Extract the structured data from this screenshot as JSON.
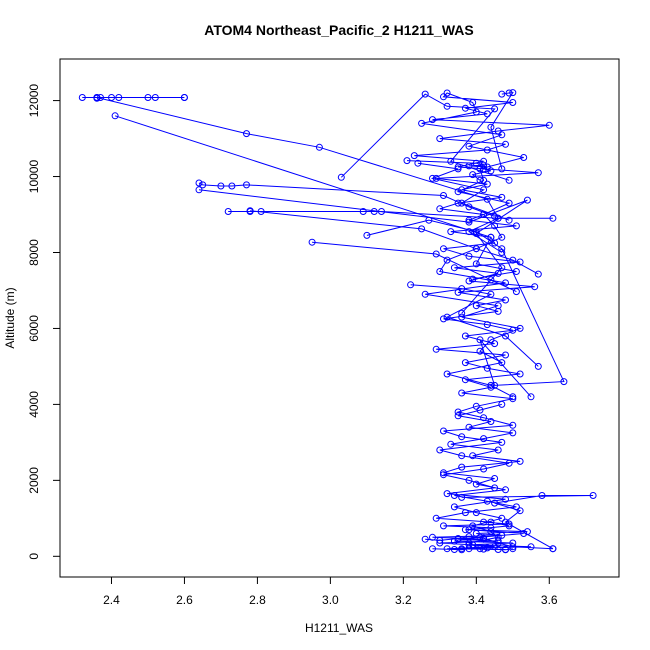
{
  "chart_data": {
    "type": "line",
    "title": "ATOM4 Northeast_Pacific_2 H1211_WAS",
    "xlabel": "H1211_WAS",
    "ylabel": "Altitude (m)",
    "xlim": [
      2.3,
      3.75
    ],
    "ylim": [
      -150,
      12700
    ],
    "xticks": [
      "2.4",
      "2.6",
      "2.8",
      "3.0",
      "3.2",
      "3.4",
      "3.6"
    ],
    "yticks": [
      "0",
      "2000",
      "4000",
      "6000",
      "8000",
      "10000",
      "12000"
    ],
    "grid": false,
    "legend": "none",
    "marker": "open-circle",
    "series": [
      {
        "color": "#0000ff",
        "x": [
          3.41,
          3.38,
          3.46,
          3.44,
          3.39,
          3.47,
          3.4,
          3.34,
          3.48,
          3.32,
          3.45,
          3.38,
          3.31,
          3.42,
          3.49,
          3.36,
          3.3,
          3.47,
          3.36,
          3.31,
          3.5,
          3.42,
          3.35,
          3.4,
          3.5,
          3.36,
          3.44,
          3.37,
          3.52,
          3.43,
          3.37,
          3.48,
          3.29,
          3.45,
          3.37,
          3.5,
          3.43,
          3.31,
          3.46,
          3.4,
          3.48,
          3.35,
          3.56,
          3.38,
          3.46,
          3.34,
          3.52,
          3.38,
          3.31,
          3.45,
          3.44,
          3.33,
          3.51,
          3.38,
          3.42,
          3.3,
          3.35,
          3.47,
          3.36,
          3.43,
          3.29,
          3.57,
          3.35,
          3.42,
          3.23,
          3.43,
          3.48,
          3.3,
          3.46,
          3.6,
          3.28,
          3.43,
          3.37,
          3.5,
          3.31,
          3.32,
          3.39,
          3.4,
          3.25,
          3.47,
          3.38,
          3.53,
          3.41,
          3.42,
          3.35,
          3.49,
          3.42,
          3.45,
          3.47,
          3.4,
          3.32,
          3.3,
          3.48,
          3.26,
          3.46,
          3.36,
          3.52,
          3.44,
          3.41,
          3.47,
          3.32,
          3.44,
          3.5
        ],
        "y": [
          200,
          350,
          500,
          650,
          800,
          1000,
          1150,
          1300,
          1500,
          1650,
          1800,
          2000,
          2150,
          2300,
          2450,
          2650,
          2800,
          3000,
          3150,
          3300,
          3450,
          3650,
          3800,
          3950,
          4150,
          4300,
          4450,
          4650,
          4800,
          4950,
          5100,
          5300,
          5450,
          5600,
          5800,
          5950,
          6100,
          6250,
          6450,
          6600,
          6750,
          6950,
          7100,
          7250,
          7450,
          7600,
          7750,
          7900,
          8100,
          8250,
          8400,
          8550,
          8700,
          8850,
          9000,
          9150,
          9300,
          9450,
          9650,
          9800,
          9950,
          10100,
          10250,
          10400,
          10550,
          10700,
          10850,
          11000,
          11200,
          11350,
          11500,
          11650,
          11800,
          11950,
          12100,
          12200,
          11950,
          11700,
          11400,
          11100,
          10800,
          10500,
          10200,
          9900,
          9600,
          9300,
          9000,
          8700,
          8400,
          8100,
          7800,
          7500,
          7200,
          6900,
          6600,
          6300,
          6000,
          5700,
          5400,
          5100,
          4800,
          4500,
          4200
        ]
      },
      {
        "color": "#0000ff",
        "x": [
          3.47,
          3.41,
          3.35,
          3.44,
          3.38,
          3.5,
          3.42,
          3.33,
          3.46,
          3.39,
          3.52,
          3.36,
          3.31,
          3.45,
          3.4,
          3.48,
          3.34,
          3.43,
          3.51,
          3.37,
          3.29,
          3.44,
          3.49,
          3.38,
          3.53,
          3.41,
          3.35,
          3.46,
          3.3,
          3.39,
          3.55,
          3.43,
          3.36,
          3.48,
          3.32,
          3.45,
          3.38,
          3.5,
          3.34,
          3.42,
          3.28,
          3.47,
          3.4,
          3.54,
          3.37,
          3.44,
          3.31,
          3.49,
          3.42
        ],
        "y": [
          4000,
          3850,
          3700,
          3550,
          3400,
          3250,
          3100,
          2950,
          2800,
          2650,
          2500,
          2350,
          2200,
          2050,
          1900,
          1750,
          1600,
          1450,
          1300,
          1150,
          1000,
          900,
          800,
          700,
          600,
          500,
          450,
          400,
          350,
          300,
          250,
          220,
          200,
          180,
          200,
          250,
          300,
          350,
          400,
          450,
          500,
          550,
          600,
          650,
          700,
          750,
          800,
          850,
          900
        ]
      },
      {
        "color": "#0000ff",
        "x": [
          2.32,
          2.36,
          2.4,
          2.42,
          2.5,
          2.52,
          2.6,
          2.6,
          2.37,
          2.36
        ],
        "y": [
          12080,
          12080,
          12080,
          12080,
          12080,
          12080,
          12080,
          12080,
          12080,
          12060
        ]
      },
      {
        "color": "#0000ff",
        "x": [
          2.36,
          2.77,
          2.97,
          3.43,
          3.46,
          3.38,
          3.47
        ],
        "y": [
          12080,
          11130,
          10770,
          9400,
          8900,
          8550,
          8000
        ]
      },
      {
        "color": "#0000ff",
        "x": [
          2.41,
          3.44,
          3.4,
          3.51,
          3.39
        ],
        "y": [
          11600,
          8400,
          7700,
          7500,
          7300
        ]
      },
      {
        "color": "#0000ff",
        "x": [
          3.03,
          3.26,
          3.32,
          3.45,
          3.33,
          3.49
        ],
        "y": [
          9980,
          12170,
          11850,
          11780,
          10400,
          9900
        ]
      },
      {
        "color": "#0000ff",
        "x": [
          3.47,
          3.49,
          3.5,
          3.44,
          3.47
        ],
        "y": [
          12170,
          12200,
          12210,
          11300,
          10200
        ]
      },
      {
        "color": "#0000ff",
        "x": [
          2.64,
          2.65,
          2.7,
          2.73,
          2.77,
          3.31,
          3.38,
          3.45
        ],
        "y": [
          9830,
          9780,
          9750,
          9750,
          9780,
          9500,
          9200,
          8950
        ]
      },
      {
        "color": "#0000ff",
        "x": [
          2.64,
          3.38,
          3.54,
          3.4,
          3.47,
          3.36
        ],
        "y": [
          9650,
          8800,
          9380,
          8500,
          7600,
          6400
        ]
      },
      {
        "color": "#0000ff",
        "x": [
          2.72,
          2.78,
          2.81,
          3.09,
          3.12,
          3.14,
          3.46,
          3.61
        ],
        "y": [
          9080,
          9080,
          9080,
          9080,
          9080,
          9080,
          8900,
          8900
        ]
      },
      {
        "color": "#0000ff",
        "x": [
          2.78,
          3.25,
          3.4,
          3.5,
          3.57
        ],
        "y": [
          9100,
          8620,
          8100,
          7800,
          7430
        ]
      },
      {
        "color": "#0000ff",
        "x": [
          2.95,
          3.29,
          3.44,
          3.51
        ],
        "y": [
          8270,
          7960,
          7280,
          6970
        ]
      },
      {
        "color": "#0000ff",
        "x": [
          3.1,
          3.27,
          3.4,
          3.47,
          3.64,
          3.45,
          3.41,
          3.55
        ],
        "y": [
          8450,
          8850,
          8550,
          8100,
          4600,
          4500,
          5700,
          4200
        ]
      },
      {
        "color": "#0000ff",
        "x": [
          3.21,
          3.4,
          3.42,
          3.38,
          3.43,
          3.42,
          3.44,
          3.39,
          3.41
        ],
        "y": [
          10420,
          10350,
          10300,
          10280,
          10250,
          10200,
          10150,
          10050,
          9900
        ]
      },
      {
        "color": "#0000ff",
        "x": [
          3.24,
          3.35,
          3.28,
          3.42,
          3.36,
          3.49
        ],
        "y": [
          10350,
          10200,
          9950,
          9650,
          9300,
          8850
        ]
      },
      {
        "color": "#0000ff",
        "x": [
          3.22,
          3.36,
          3.44,
          3.32,
          3.48,
          3.57
        ],
        "y": [
          7150,
          7050,
          6900,
          6300,
          5800,
          5000
        ]
      },
      {
        "color": "#0000ff",
        "x": [
          3.36,
          3.72,
          3.58,
          3.45,
          3.52,
          3.48,
          3.61
        ],
        "y": [
          1550,
          1600,
          1600,
          1400,
          1200,
          900,
          200
        ]
      },
      {
        "color": "#0000ff",
        "x": [
          3.26,
          3.3,
          3.35,
          3.38,
          3.42,
          3.46,
          3.5,
          3.61
        ],
        "y": [
          450,
          420,
          470,
          520,
          480,
          350,
          250,
          200
        ]
      },
      {
        "color": "#0000ff",
        "x": [
          3.28,
          3.34,
          3.36,
          3.38,
          3.42,
          3.46,
          3.48,
          3.5
        ],
        "y": [
          200,
          180,
          170,
          200,
          190,
          180,
          170,
          200
        ]
      }
    ]
  }
}
